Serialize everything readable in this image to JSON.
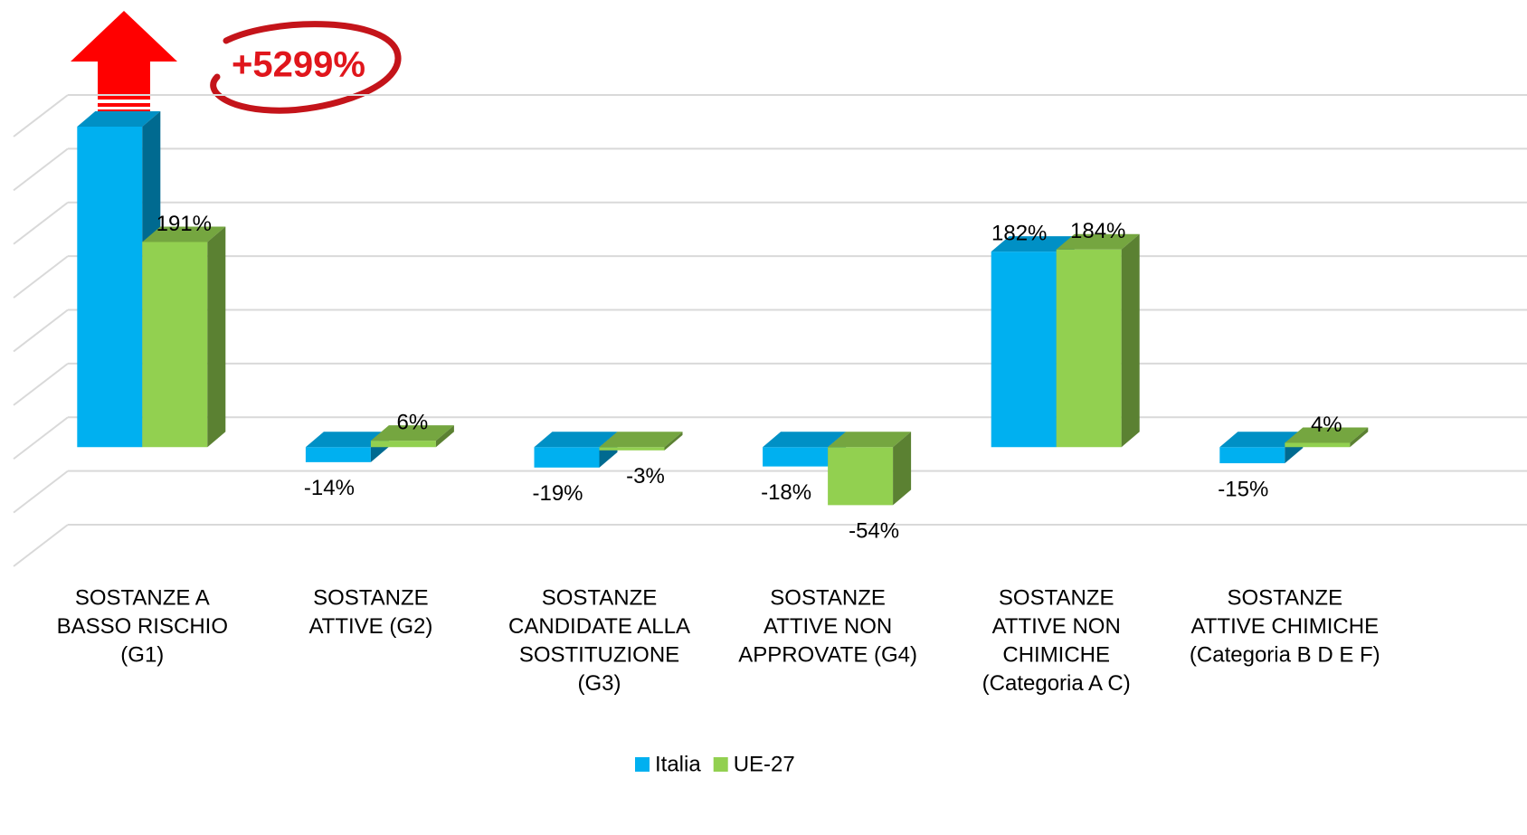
{
  "chart_data": {
    "type": "bar",
    "categories": [
      [
        "SOSTANZE A",
        "BASSO RISCHIO",
        "(G1)"
      ],
      [
        "SOSTANZE",
        "ATTIVE (G2)"
      ],
      [
        "SOSTANZE",
        "CANDIDATE ALLA",
        "SOSTITUZIONE",
        "(G3)"
      ],
      [
        "SOSTANZE",
        "ATTIVE NON",
        "APPROVATE (G4)"
      ],
      [
        "SOSTANZE",
        "ATTIVE NON",
        "CHIMICHE",
        "(Categoria A C)"
      ],
      [
        "SOSTANZE",
        "ATTIVE CHIMICHE",
        "(Categoria B D E F)"
      ]
    ],
    "series": [
      {
        "name": "Italia",
        "color": "#00b0f0",
        "values": [
          5299,
          -14,
          -19,
          -18,
          182,
          -15
        ],
        "value_labels": [
          "+5299%",
          "-14%",
          "-19%",
          "-18%",
          "182%",
          "-15%"
        ]
      },
      {
        "name": "UE-27",
        "color": "#92d050",
        "values": [
          191,
          6,
          -3,
          -54,
          184,
          4
        ],
        "value_labels": [
          "191%",
          "6%",
          "-3%",
          "-54%",
          "184%",
          "4%"
        ]
      }
    ],
    "ylim": [
      -100,
      300
    ],
    "yticks": [
      -100,
      -50,
      0,
      50,
      100,
      150,
      200,
      250,
      300
    ],
    "grid": true
  }
}
